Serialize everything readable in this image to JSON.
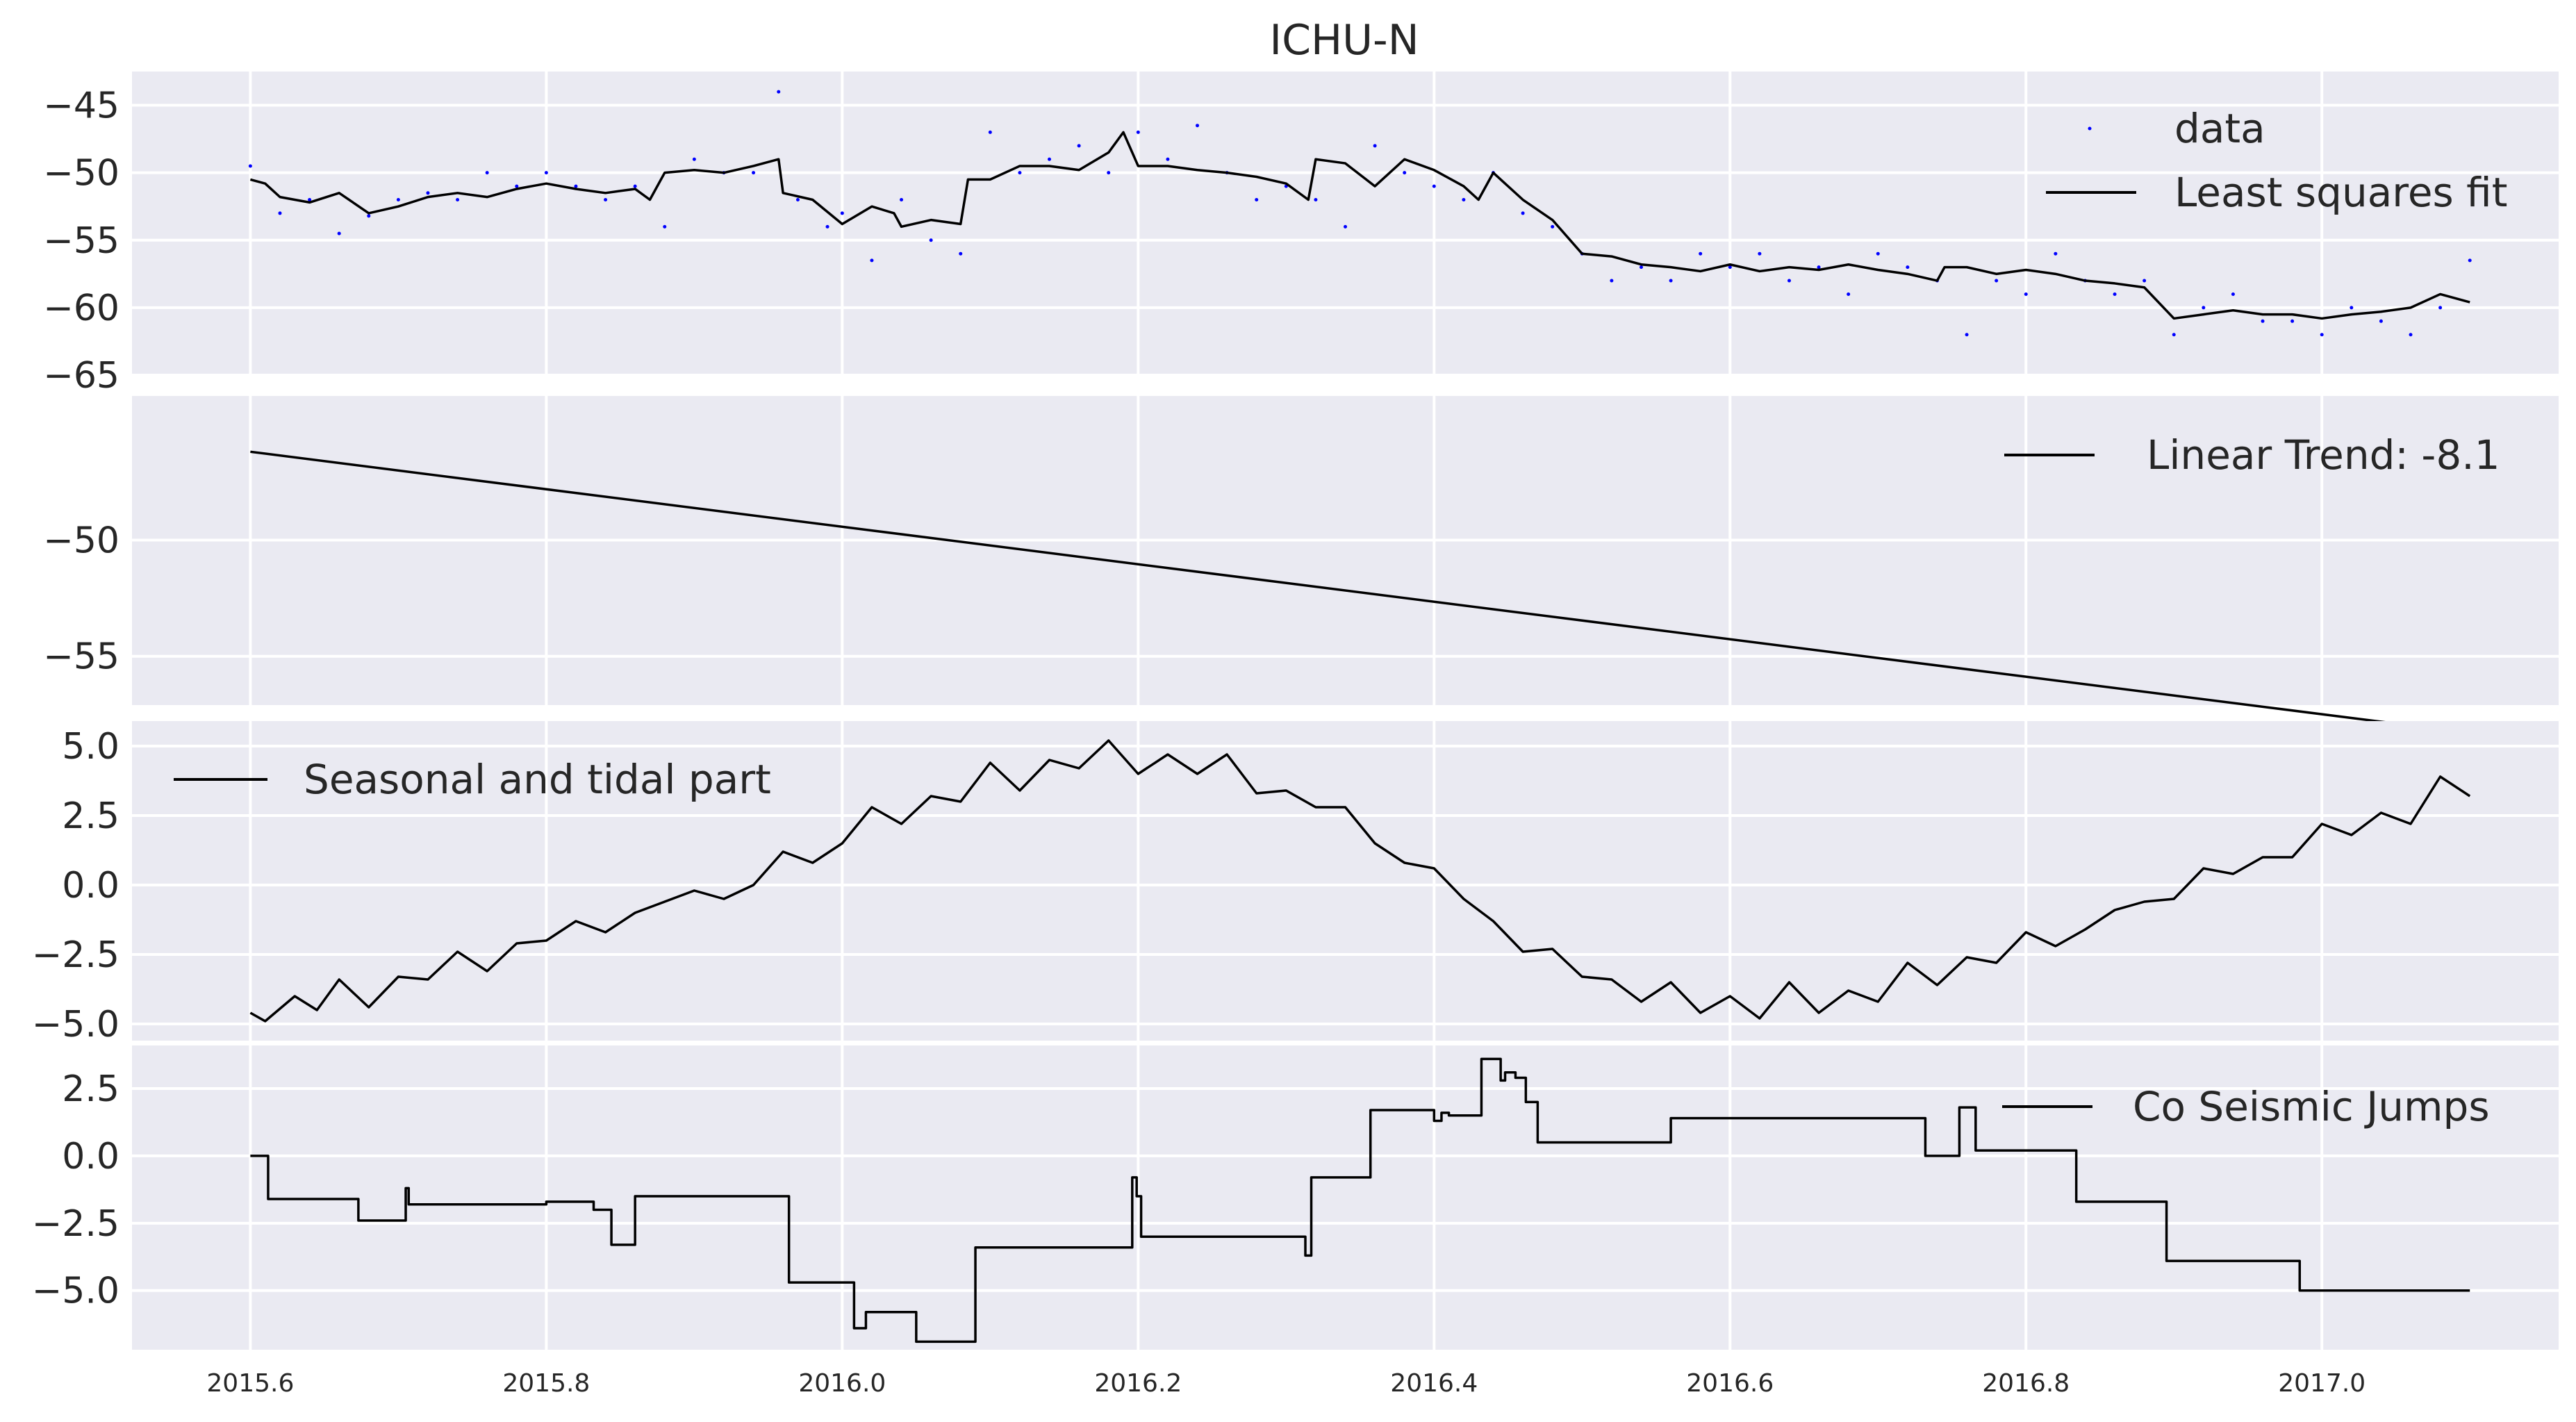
{
  "figure": {
    "title": "ICHU-N"
  },
  "colors": {
    "panel_bg": "#eaeaf2",
    "grid": "#ffffff",
    "line": "#000000",
    "data_points": "#0000ff",
    "text": "#262626"
  },
  "chart_data": [
    {
      "type": "scatter",
      "x_range": [
        2015.52,
        2017.16
      ],
      "ylim": [
        -65,
        -42.5
      ],
      "yticks": [
        -45,
        -50,
        -55,
        -60,
        -65
      ],
      "ytick_labels": [
        "−45",
        "−50",
        "−55",
        "−60",
        "−65"
      ],
      "legend_position": "upper right",
      "series": [
        {
          "name": "data",
          "kind": "points",
          "x": [
            2015.6,
            2015.62,
            2015.64,
            2015.66,
            2015.68,
            2015.7,
            2015.72,
            2015.74,
            2015.76,
            2015.78,
            2015.8,
            2015.82,
            2015.84,
            2015.86,
            2015.88,
            2015.9,
            2015.92,
            2015.94,
            2015.957,
            2015.97,
            2015.99,
            2016.0,
            2016.02,
            2016.04,
            2016.06,
            2016.08,
            2016.1,
            2016.12,
            2016.14,
            2016.16,
            2016.18,
            2016.2,
            2016.22,
            2016.24,
            2016.26,
            2016.28,
            2016.3,
            2016.32,
            2016.34,
            2016.36,
            2016.38,
            2016.4,
            2016.42,
            2016.44,
            2016.46,
            2016.48,
            2016.5,
            2016.52,
            2016.54,
            2016.56,
            2016.58,
            2016.6,
            2016.62,
            2016.64,
            2016.66,
            2016.68,
            2016.7,
            2016.72,
            2016.74,
            2016.76,
            2016.78,
            2016.8,
            2016.82,
            2016.84,
            2016.86,
            2016.88,
            2016.9,
            2016.92,
            2016.94,
            2016.96,
            2016.98,
            2017.0,
            2017.02,
            2017.04,
            2017.06,
            2017.08,
            2017.1
          ],
          "y": [
            -49.5,
            -53,
            -52,
            -54.5,
            -53.2,
            -52,
            -51.5,
            -52,
            -50,
            -51,
            -50,
            -51,
            -52,
            -51,
            -54,
            -49,
            -50,
            -50,
            -44,
            -52,
            -54,
            -53,
            -56.5,
            -52,
            -55,
            -56,
            -47,
            -50,
            -49,
            -48,
            -50,
            -47,
            -49,
            -46.5,
            -50,
            -52,
            -51,
            -52,
            -54,
            -48,
            -50,
            -51,
            -52,
            -50,
            -53,
            -54,
            -56,
            -58,
            -57,
            -58,
            -56,
            -57,
            -56,
            -58,
            -57,
            -59,
            -56,
            -57,
            -58,
            -62,
            -58,
            -59,
            -56,
            -58,
            -59,
            -58,
            -62,
            -60,
            -59,
            -61,
            -61,
            -62,
            -60,
            -61,
            -62,
            -60,
            -56.5
          ]
        },
        {
          "name": "Least squares fit",
          "kind": "line",
          "x": [
            2015.6,
            2015.61,
            2015.62,
            2015.64,
            2015.66,
            2015.68,
            2015.7,
            2015.72,
            2015.74,
            2015.76,
            2015.78,
            2015.8,
            2015.82,
            2015.84,
            2015.86,
            2015.87,
            2015.88,
            2015.9,
            2015.92,
            2015.94,
            2015.957,
            2015.96,
            2015.98,
            2016.0,
            2016.02,
            2016.035,
            2016.04,
            2016.06,
            2016.08,
            2016.085,
            2016.1,
            2016.12,
            2016.14,
            2016.16,
            2016.18,
            2016.19,
            2016.2,
            2016.22,
            2016.24,
            2016.26,
            2016.28,
            2016.3,
            2016.315,
            2016.32,
            2016.34,
            2016.36,
            2016.38,
            2016.4,
            2016.42,
            2016.43,
            2016.44,
            2016.46,
            2016.48,
            2016.5,
            2016.52,
            2016.54,
            2016.56,
            2016.58,
            2016.6,
            2016.62,
            2016.64,
            2016.66,
            2016.68,
            2016.7,
            2016.72,
            2016.74,
            2016.745,
            2016.76,
            2016.78,
            2016.8,
            2016.82,
            2016.84,
            2016.86,
            2016.88,
            2016.9,
            2016.92,
            2016.94,
            2016.96,
            2016.98,
            2017.0,
            2017.02,
            2017.04,
            2017.06,
            2017.08,
            2017.1
          ],
          "y": [
            -50.5,
            -50.8,
            -51.8,
            -52.2,
            -51.5,
            -53,
            -52.5,
            -51.8,
            -51.5,
            -51.8,
            -51.2,
            -50.8,
            -51.2,
            -51.5,
            -51.2,
            -52,
            -50,
            -49.8,
            -50,
            -49.5,
            -49,
            -51.5,
            -52,
            -53.8,
            -52.5,
            -53,
            -54,
            -53.5,
            -53.8,
            -50.5,
            -50.5,
            -49.5,
            -49.5,
            -49.8,
            -48.5,
            -47,
            -49.5,
            -49.5,
            -49.8,
            -50,
            -50.3,
            -50.8,
            -52,
            -49,
            -49.3,
            -51,
            -49,
            -49.8,
            -51,
            -52,
            -50,
            -52,
            -53.5,
            -56,
            -56.2,
            -56.8,
            -57,
            -57.3,
            -56.8,
            -57.3,
            -57,
            -57.2,
            -56.8,
            -57.2,
            -57.5,
            -58,
            -57,
            -57,
            -57.5,
            -57.2,
            -57.5,
            -58,
            -58.2,
            -58.5,
            -60.8,
            -60.5,
            -60.2,
            -60.5,
            -60.5,
            -60.8,
            -60.5,
            -60.3,
            -60,
            -59,
            -59.6
          ]
        }
      ]
    },
    {
      "type": "line",
      "x_range": [
        2015.52,
        2017.16
      ],
      "ylim": [
        -57.1,
        -43.8
      ],
      "yticks": [
        -50,
        -55
      ],
      "ytick_labels": [
        "−50",
        "−55"
      ],
      "legend_position": "upper right",
      "series": [
        {
          "name": "Linear Trend: -8.1",
          "x": [
            2015.6,
            2017.1
          ],
          "y": [
            -46.2,
            -58.3
          ]
        }
      ]
    },
    {
      "type": "line",
      "x_range": [
        2015.52,
        2017.16
      ],
      "ylim": [
        -5.6,
        5.9
      ],
      "yticks": [
        5.0,
        2.5,
        0.0,
        -2.5,
        -5.0
      ],
      "ytick_labels": [
        "5.0",
        "2.5",
        "0.0",
        "−2.5",
        "−5.0"
      ],
      "legend_position": "upper left",
      "series": [
        {
          "name": "Seasonal and tidal part",
          "x": [
            2015.6,
            2015.61,
            2015.63,
            2015.645,
            2015.66,
            2015.68,
            2015.7,
            2015.72,
            2015.74,
            2015.76,
            2015.78,
            2015.8,
            2015.82,
            2015.84,
            2015.86,
            2015.88,
            2015.9,
            2015.92,
            2015.94,
            2015.96,
            2015.98,
            2016.0,
            2016.02,
            2016.04,
            2016.06,
            2016.08,
            2016.1,
            2016.12,
            2016.14,
            2016.16,
            2016.18,
            2016.2,
            2016.22,
            2016.24,
            2016.26,
            2016.28,
            2016.3,
            2016.32,
            2016.34,
            2016.36,
            2016.38,
            2016.4,
            2016.42,
            2016.44,
            2016.46,
            2016.48,
            2016.5,
            2016.52,
            2016.54,
            2016.56,
            2016.58,
            2016.6,
            2016.62,
            2016.64,
            2016.66,
            2016.68,
            2016.7,
            2016.72,
            2016.74,
            2016.76,
            2016.78,
            2016.8,
            2016.82,
            2016.84,
            2016.86,
            2016.88,
            2016.9,
            2016.92,
            2016.94,
            2016.96,
            2016.98,
            2017.0,
            2017.02,
            2017.04,
            2017.06,
            2017.08,
            2017.1
          ],
          "y": [
            -4.6,
            -4.9,
            -4.0,
            -4.5,
            -3.4,
            -4.4,
            -3.3,
            -3.4,
            -2.4,
            -3.1,
            -2.1,
            -2.0,
            -1.3,
            -1.7,
            -1.0,
            -0.6,
            -0.2,
            -0.5,
            0.0,
            1.2,
            0.8,
            1.5,
            2.8,
            2.2,
            3.2,
            3.0,
            4.4,
            3.4,
            4.5,
            4.2,
            5.2,
            4.0,
            4.7,
            4.0,
            4.7,
            3.3,
            3.4,
            2.8,
            2.8,
            1.5,
            0.8,
            0.6,
            -0.5,
            -1.3,
            -2.4,
            -2.3,
            -3.3,
            -3.4,
            -4.2,
            -3.5,
            -4.6,
            -4.0,
            -4.8,
            -3.5,
            -4.6,
            -3.8,
            -4.2,
            -2.8,
            -3.6,
            -2.6,
            -2.8,
            -1.7,
            -2.2,
            -1.6,
            -0.9,
            -0.6,
            -0.5,
            0.6,
            0.4,
            1.0,
            1.0,
            2.2,
            1.8,
            2.6,
            2.2,
            3.9,
            3.2
          ]
        }
      ]
    },
    {
      "type": "line",
      "x_range": [
        2015.52,
        2017.16
      ],
      "ylim": [
        -7.2,
        4.1
      ],
      "yticks": [
        2.5,
        0.0,
        -2.5,
        -5.0
      ],
      "ytick_labels": [
        "2.5",
        "0.0",
        "−2.5",
        "−5.0"
      ],
      "xticks": [
        2015.6,
        2015.8,
        2016.0,
        2016.2,
        2016.4,
        2016.6,
        2016.8,
        2017.0
      ],
      "xtick_labels": [
        "2015.6",
        "2015.8",
        "2016.0",
        "2016.2",
        "2016.4",
        "2016.6",
        "2016.8",
        "2017.0"
      ],
      "legend_position": "upper right",
      "series": [
        {
          "name": "Co Seismic Jumps",
          "step": true,
          "x": [
            2015.6,
            2015.612,
            2015.673,
            2015.705,
            2015.707,
            2015.8,
            2015.832,
            2015.844,
            2015.86,
            2015.964,
            2016.008,
            2016.016,
            2016.024,
            2016.05,
            2016.09,
            2016.196,
            2016.199,
            2016.202,
            2016.313,
            2016.317,
            2016.357,
            2016.4,
            2016.405,
            2016.41,
            2016.432,
            2016.44,
            2016.445,
            2016.448,
            2016.455,
            2016.462,
            2016.47,
            2016.56,
            2016.732,
            2016.745,
            2016.755,
            2016.766,
            2016.834,
            2016.895,
            2016.985,
            2017.1
          ],
          "y": [
            0.0,
            -1.6,
            -2.4,
            -1.2,
            -1.8,
            -1.7,
            -2.0,
            -3.3,
            -1.5,
            -4.7,
            -6.4,
            -5.8,
            -5.8,
            -6.9,
            -3.4,
            -0.8,
            -1.5,
            -3.0,
            -3.7,
            -0.8,
            1.7,
            1.3,
            1.6,
            1.5,
            3.6,
            3.6,
            2.8,
            3.1,
            2.9,
            2.0,
            0.5,
            1.4,
            0.0,
            0.0,
            1.8,
            0.2,
            -1.7,
            -3.9,
            -5.0,
            -5.0
          ]
        }
      ]
    }
  ]
}
